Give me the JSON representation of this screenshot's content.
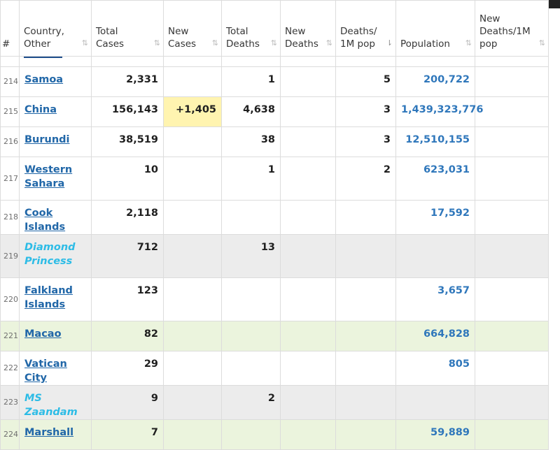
{
  "headers": [
    {
      "label": "#",
      "sort": false
    },
    {
      "label": "Country, Other",
      "sort": true
    },
    {
      "label": "Total Cases",
      "sort": true
    },
    {
      "label": "New Cases",
      "sort": true
    },
    {
      "label": "Total Deaths",
      "sort": true
    },
    {
      "label": "New Deaths",
      "sort": true
    },
    {
      "label": "Deaths/ 1M pop",
      "sort": true,
      "active": true
    },
    {
      "label": "Population",
      "sort": true
    },
    {
      "label": "New Deaths/1M pop",
      "sort": true
    }
  ],
  "sort_icon": "⇅",
  "sort_icon_active": "⇂",
  "rows": [
    {
      "idx": "214",
      "country": "Samoa",
      "total_cases": "2,331",
      "new_cases": "",
      "total_deaths": "1",
      "new_deaths": "",
      "deaths_1m": "5",
      "population": "200,722",
      "new_deaths_1m": "",
      "style": "white",
      "tall": false
    },
    {
      "idx": "215",
      "country": "China",
      "total_cases": "156,143",
      "new_cases": "+1,405",
      "total_deaths": "4,638",
      "new_deaths": "",
      "deaths_1m": "3",
      "population": "1,439,323,776",
      "new_deaths_1m": "",
      "style": "white",
      "tall": false
    },
    {
      "idx": "216",
      "country": "Burundi",
      "total_cases": "38,519",
      "new_cases": "",
      "total_deaths": "38",
      "new_deaths": "",
      "deaths_1m": "3",
      "population": "12,510,155",
      "new_deaths_1m": "",
      "style": "white",
      "tall": false
    },
    {
      "idx": "217",
      "country": "Western Sahara",
      "total_cases": "10",
      "new_cases": "",
      "total_deaths": "1",
      "new_deaths": "",
      "deaths_1m": "2",
      "population": "623,031",
      "new_deaths_1m": "",
      "style": "white",
      "tall": true
    },
    {
      "idx": "218",
      "country": "Cook Islands",
      "total_cases": "2,118",
      "new_cases": "",
      "total_deaths": "",
      "new_deaths": "",
      "deaths_1m": "",
      "population": "17,592",
      "new_deaths_1m": "",
      "style": "white",
      "tall": false
    },
    {
      "idx": "219",
      "country": "Diamond Princess",
      "total_cases": "712",
      "new_cases": "",
      "total_deaths": "13",
      "new_deaths": "",
      "deaths_1m": "",
      "population": "",
      "new_deaths_1m": "",
      "style": "gray",
      "tall": true,
      "ship": true
    },
    {
      "idx": "220",
      "country": "Falkland Islands",
      "total_cases": "123",
      "new_cases": "",
      "total_deaths": "",
      "new_deaths": "",
      "deaths_1m": "",
      "population": "3,657",
      "new_deaths_1m": "",
      "style": "white",
      "tall": true
    },
    {
      "idx": "221",
      "country": "Macao",
      "total_cases": "82",
      "new_cases": "",
      "total_deaths": "",
      "new_deaths": "",
      "deaths_1m": "",
      "population": "664,828",
      "new_deaths_1m": "",
      "style": "green",
      "tall": false
    },
    {
      "idx": "222",
      "country": "Vatican City",
      "total_cases": "29",
      "new_cases": "",
      "total_deaths": "",
      "new_deaths": "",
      "deaths_1m": "",
      "population": "805",
      "new_deaths_1m": "",
      "style": "white",
      "tall": false
    },
    {
      "idx": "223",
      "country": "MS Zaandam",
      "total_cases": "9",
      "new_cases": "",
      "total_deaths": "2",
      "new_deaths": "",
      "deaths_1m": "",
      "population": "",
      "new_deaths_1m": "",
      "style": "gray",
      "tall": false,
      "ship": true
    },
    {
      "idx": "224",
      "country": "Marshall",
      "total_cases": "7",
      "new_cases": "",
      "total_deaths": "",
      "new_deaths": "",
      "deaths_1m": "",
      "population": "59,889",
      "new_deaths_1m": "",
      "style": "green",
      "tall": false
    }
  ],
  "colors": {
    "link": "#2167a8",
    "ship_link": "#2dbce6",
    "population": "#2f77bb",
    "new_cases_bg": "#fff4b0",
    "gray_row": "#ececec",
    "green_row": "#ebf4dd"
  }
}
